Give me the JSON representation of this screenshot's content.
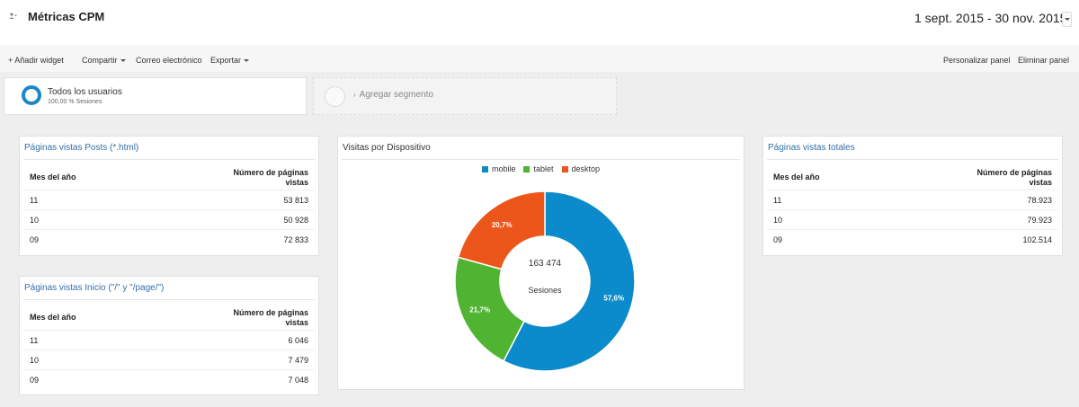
{
  "header": {
    "title": "Métricas CPM",
    "date_range": "1 sept. 2015 - 30 nov. 2015"
  },
  "toolbar": {
    "add_widget": "+ Añadir widget",
    "share": "Compartir",
    "email": "Correo electrónico",
    "export": "Exportar",
    "customize": "Personalizar panel",
    "delete": "Eliminar panel"
  },
  "segments": {
    "active_title": "Todos los usuarios",
    "active_sub": "100,00 % Sesiones",
    "add_label": "Agregar segmento"
  },
  "widgets": {
    "posts": {
      "title": "Páginas vistas Posts (*.html)",
      "col_left": "Mes del año",
      "col_right_1": "Número de páginas",
      "col_right_2": "vistas",
      "rows": [
        {
          "month": "11",
          "value": "53 813"
        },
        {
          "month": "10",
          "value": "50 928"
        },
        {
          "month": "09",
          "value": "72 833"
        }
      ]
    },
    "inicio": {
      "title": "Páginas vistas Inicio (\"/\" y \"/page/\")",
      "col_left": "Mes del año",
      "col_right_1": "Número de páginas",
      "col_right_2": "vistas",
      "rows": [
        {
          "month": "11",
          "value": "6 046"
        },
        {
          "month": "10",
          "value": "7 479"
        },
        {
          "month": "09",
          "value": "7 048"
        }
      ]
    },
    "totales": {
      "title": "Páginas vistas totales",
      "col_left": "Mes del año",
      "col_right_1": "Número de páginas",
      "col_right_2": "vistas",
      "rows": [
        {
          "month": "11",
          "value": "78.923"
        },
        {
          "month": "10",
          "value": "79.923"
        },
        {
          "month": "09",
          "value": "102.514"
        }
      ]
    },
    "devices": {
      "title": "Visitas por Dispositivo",
      "center_value": "163 474",
      "center_label": "Sesiones"
    }
  },
  "colors": {
    "mobile": "#0b8bcb",
    "tablet": "#50b432",
    "desktop": "#ed561b",
    "accent_text": "#336fa7"
  },
  "chart_data": {
    "type": "pie",
    "title": "Visitas por Dispositivo",
    "legend_position": "top",
    "categories": [
      "mobile",
      "tablet",
      "desktop"
    ],
    "values": [
      57.6,
      21.7,
      20.7
    ],
    "labels": [
      "57,6%",
      "21,7%",
      "20,7%"
    ],
    "colors": [
      "#0b8bcb",
      "#50b432",
      "#ed561b"
    ],
    "total": "163 474",
    "total_label": "Sesiones"
  }
}
